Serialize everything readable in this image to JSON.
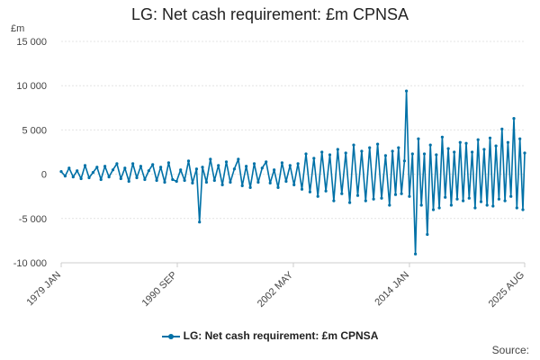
{
  "chart_data": {
    "type": "line",
    "title": "LG: Net cash requirement: £m CPNSA",
    "ylabel": "£m",
    "xlabel": "",
    "ylim": [
      -10000,
      15000
    ],
    "xlim": [
      1979.0,
      2025.583
    ],
    "y_ticks": [
      15000,
      10000,
      5000,
      0,
      -5000,
      -10000
    ],
    "y_tick_labels": [
      "15 000",
      "10 000",
      "5 000",
      "0",
      "-5 000",
      "-10 000"
    ],
    "x_ticks": [
      {
        "value": 1979.0,
        "label": "1979 JAN"
      },
      {
        "value": 1990.667,
        "label": "1990 SEP"
      },
      {
        "value": 2002.333,
        "label": "2002 MAY"
      },
      {
        "value": 2014.0,
        "label": "2014 JAN"
      },
      {
        "value": 2025.583,
        "label": "2025 AUG"
      }
    ],
    "grid": true,
    "legend_position": "bottom",
    "series": [
      {
        "name": "LG: Net cash requirement: £m CPNSA",
        "color": "#0071a7",
        "x": [
          1979.0,
          1979.4,
          1979.8,
          1980.2,
          1980.6,
          1981.0,
          1981.4,
          1981.8,
          1982.2,
          1982.6,
          1983.0,
          1983.4,
          1983.8,
          1984.2,
          1984.6,
          1985.0,
          1985.4,
          1985.8,
          1986.2,
          1986.6,
          1987.0,
          1987.4,
          1987.8,
          1988.2,
          1988.6,
          1989.0,
          1989.4,
          1989.8,
          1990.2,
          1990.6,
          1991.0,
          1991.4,
          1991.8,
          1992.2,
          1992.6,
          1992.9,
          1993.2,
          1993.6,
          1994.0,
          1994.4,
          1994.8,
          1995.2,
          1995.6,
          1996.0,
          1996.4,
          1996.8,
          1997.2,
          1997.6,
          1998.0,
          1998.4,
          1998.8,
          1999.2,
          1999.6,
          2000.0,
          2000.4,
          2000.8,
          2001.2,
          2001.6,
          2002.0,
          2002.4,
          2002.8,
          2003.2,
          2003.6,
          2004.0,
          2004.4,
          2004.8,
          2005.2,
          2005.6,
          2006.0,
          2006.4,
          2006.8,
          2007.2,
          2007.6,
          2008.0,
          2008.4,
          2008.8,
          2009.2,
          2009.6,
          2010.0,
          2010.4,
          2010.8,
          2011.2,
          2011.6,
          2012.0,
          2012.3,
          2012.6,
          2012.9,
          2013.2,
          2013.5,
          2013.7,
          2014.0,
          2014.3,
          2014.6,
          2014.9,
          2015.2,
          2015.5,
          2015.8,
          2016.1,
          2016.4,
          2016.7,
          2017.0,
          2017.3,
          2017.6,
          2017.9,
          2018.2,
          2018.5,
          2018.8,
          2019.1,
          2019.4,
          2019.7,
          2020.0,
          2020.3,
          2020.6,
          2020.9,
          2021.2,
          2021.5,
          2021.8,
          2022.1,
          2022.4,
          2022.7,
          2023.0,
          2023.3,
          2023.6,
          2023.9,
          2024.2,
          2024.5,
          2024.8,
          2025.1,
          2025.4,
          2025.583
        ],
        "y": [
          300,
          -200,
          700,
          -300,
          400,
          -500,
          1000,
          -400,
          200,
          800,
          -600,
          900,
          -300,
          500,
          1200,
          -500,
          700,
          -800,
          1200,
          -400,
          900,
          -600,
          400,
          1100,
          -700,
          800,
          -900,
          1300,
          -600,
          -800,
          500,
          -700,
          1500,
          -1000,
          600,
          -5400,
          800,
          -900,
          1700,
          -700,
          1000,
          -1200,
          1400,
          -900,
          600,
          1700,
          -1300,
          900,
          -1500,
          1200,
          -900,
          700,
          1400,
          -1000,
          500,
          -1500,
          1300,
          -800,
          1000,
          -1200,
          1200,
          -1700,
          2300,
          -2000,
          1800,
          -2500,
          2500,
          -1900,
          2200,
          -3000,
          2800,
          -2200,
          2400,
          -3200,
          3300,
          -2400,
          2600,
          -3000,
          3000,
          -2800,
          3400,
          -2700,
          2100,
          -3500,
          2600,
          -2300,
          3000,
          -2200,
          1500,
          9400,
          -2500,
          2300,
          -9000,
          4000,
          -3500,
          2300,
          -6800,
          3300,
          -4000,
          2200,
          -3800,
          4200,
          -2600,
          2900,
          -3500,
          2500,
          -2800,
          3600,
          -3000,
          3500,
          -2700,
          2500,
          -3800,
          3900,
          -3100,
          2800,
          -3500,
          4100,
          -3600,
          3200,
          -2800,
          5100,
          -3000,
          3600,
          -2500,
          6300,
          -3800,
          4000,
          -4000,
          2400
        ]
      }
    ]
  },
  "legend": {
    "label": "LG: Net cash requirement: £m CPNSA"
  },
  "source_label": "Source:"
}
